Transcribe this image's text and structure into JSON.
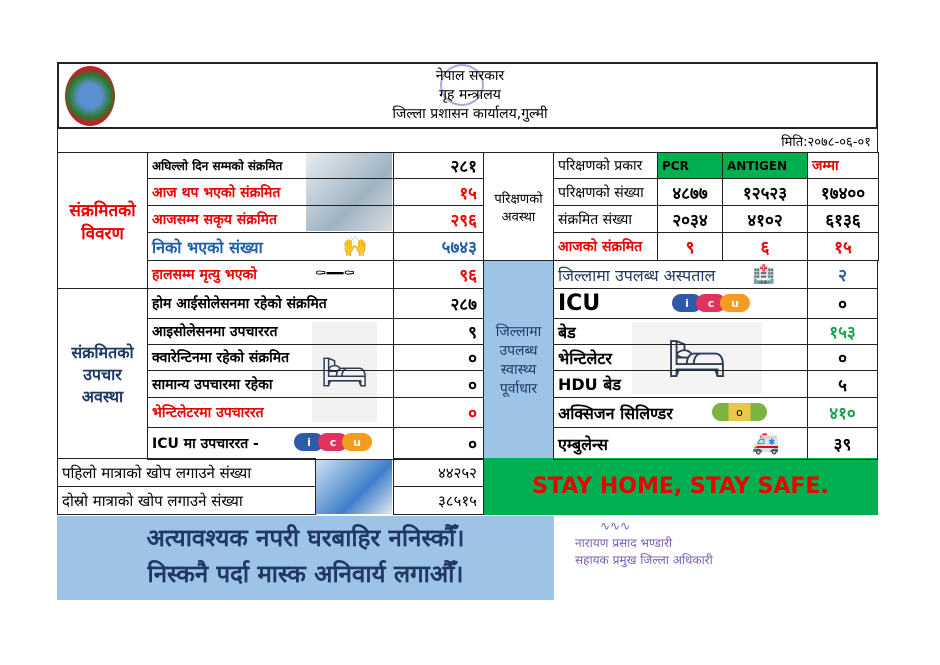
{
  "header": {
    "line1": "नेपाल सरकार",
    "line2": "गृह मन्त्रालय",
    "line3": "जिल्ला प्रशासन कार्यालय,गुल्मी",
    "date": "मिति:२०७८-०६-०१",
    "emblem_icon": "nepal-emblem",
    "stamp_icon": "office-stamp"
  },
  "infected_details": {
    "title": "संक्रमितको विवरण",
    "rows": [
      {
        "label": "अघिल्लो दिन सम्मको संक्रमित",
        "value": "२८१"
      },
      {
        "label": "आज थप भएको संक्रमित",
        "value": "१५"
      },
      {
        "label": "आजसम्म सकृय संक्रमित",
        "value": "२९६"
      },
      {
        "label": "निको भएको संख्या",
        "value": "५७४३"
      },
      {
        "label": "हालसम्म मृत्यु भएको",
        "value": "९६"
      }
    ]
  },
  "testing": {
    "title": "परिक्षणको अवस्था",
    "header": [
      "परिक्षणको प्रकार",
      "PCR",
      "ANTIGEN",
      "जम्मा"
    ],
    "rows": [
      {
        "label": "परिक्षणको संख्या",
        "pcr": "४८७७",
        "antigen": "१२५२३",
        "total": "१७४००"
      },
      {
        "label": "संक्रमित संख्या",
        "pcr": "२०३४",
        "antigen": "४१०२",
        "total": "६१३६"
      },
      {
        "label": "आजको संक्रमित",
        "pcr": "९",
        "antigen": "६",
        "total": "१५"
      }
    ]
  },
  "treatment": {
    "title": "संक्रमितको उपचार अवस्था",
    "rows": [
      {
        "label": "होम आईसोलेसनमा रहेको संक्रमित",
        "value": "२८७"
      },
      {
        "label": "आइसोलेसनमा उपचाररत",
        "value": "९"
      },
      {
        "label": "क्वारेन्टिनमा रहेको संक्रमित",
        "value": "०"
      },
      {
        "label": "सामान्य उपचारमा रहेका",
        "value": "०"
      },
      {
        "label": "भेन्टिलेटरमा उपचाररत",
        "value": "०"
      },
      {
        "label": "ICU मा उपचाररत -",
        "value": "०"
      }
    ]
  },
  "infrastructure": {
    "title": "जिल्लामा उपलब्ध स्वास्थ्य पूर्वाधार",
    "rows": [
      {
        "label": "जिल्लामा उपलब्ध अस्पताल",
        "value": "२"
      },
      {
        "label": "ICU",
        "value": "०"
      },
      {
        "label": "बेड",
        "value": "१५३"
      },
      {
        "label": "भेन्टिलेटर",
        "value": "०"
      },
      {
        "label": "HDU बेड",
        "value": "५"
      },
      {
        "label": "अक्सिजन सिलिण्डर",
        "value": "४१०"
      },
      {
        "label": "एम्बुलेन्स",
        "value": "३९"
      }
    ]
  },
  "icu_logo": [
    "i",
    "c",
    "u"
  ],
  "vaccine": [
    {
      "label": "पहिलो मात्राको खोप लगाउने संख्या",
      "value": "४४२५२"
    },
    {
      "label": "दोस्रो मात्राको खोप लगाउने संख्या",
      "value": "३८५१५"
    }
  ],
  "slogan": "STAY HOME, STAY SAFE.",
  "banner": {
    "line1": "अत्यावश्यक नपरी घरबाहिर ननिस्कौँ।",
    "line2": "निस्कनै पर्दा मास्क अनिवार्य लगाऔँ।"
  },
  "signature": {
    "name": "नारायण प्रसाद भण्डारी",
    "title": "सहायक प्रमुख जिल्ला अधिकारी"
  },
  "colors": {
    "green": "#00b050",
    "red": "#e00000",
    "blue_panel": "#9dc3e6"
  }
}
